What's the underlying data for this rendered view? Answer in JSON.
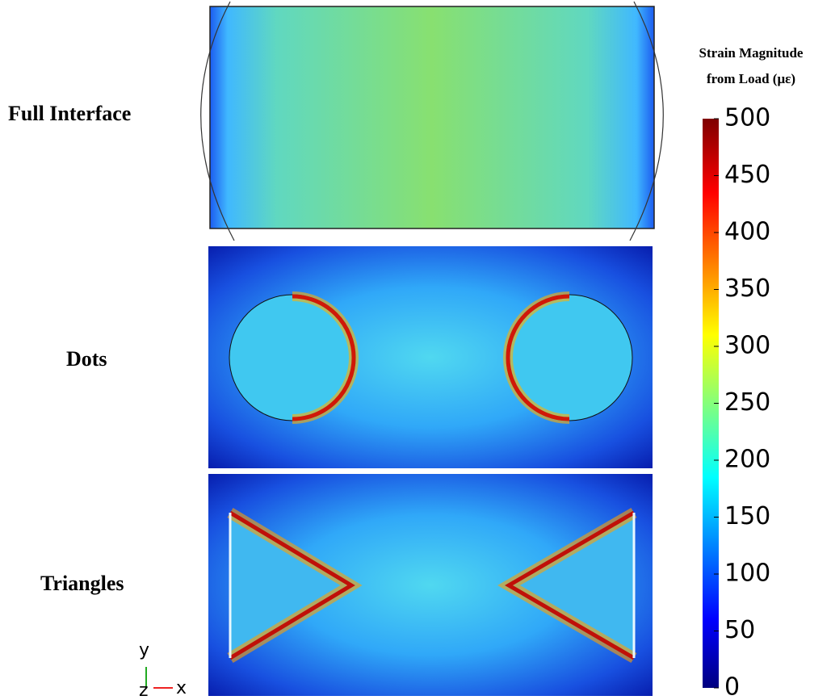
{
  "panels": [
    {
      "label": "Full Interface"
    },
    {
      "label": "Dots"
    },
    {
      "label": "Triangles"
    }
  ],
  "colorbar": {
    "title_lines": [
      "Strain Magnitude",
      "from Load (με)"
    ],
    "range": [
      0,
      500
    ],
    "ticks": [
      0,
      50,
      100,
      150,
      200,
      250,
      300,
      350,
      400,
      450,
      500
    ]
  },
  "axes_triad": {
    "y": "y",
    "z": "z",
    "x": "x"
  }
}
